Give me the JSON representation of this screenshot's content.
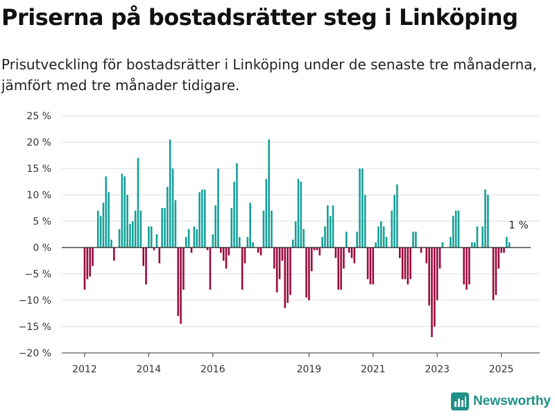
{
  "header": {
    "title": "Priserna på bostadsrätter steg i Linköping",
    "subtitle": "Prisutveckling för bostadsrätter i Linköping under de senaste tre månaderna, jämfört med tre månader tidigare."
  },
  "brand": {
    "name": "Newsworthy",
    "icon": "newsworthy-logo-icon"
  },
  "colors": {
    "positive": "#159f98",
    "negative": "#9a0a3d",
    "grid": "#dddddd",
    "zero_line": "#222222"
  },
  "chart_data": {
    "type": "bar",
    "title": "Priserna på bostadsrätter steg i Linköping",
    "xlabel": "",
    "ylabel": "",
    "ylim": [
      -20,
      25
    ],
    "y_ticks": [
      -20,
      -15,
      -10,
      -5,
      0,
      5,
      10,
      15,
      20,
      25
    ],
    "y_tick_labels": [
      "−20 %",
      "−15 %",
      "−10 %",
      "−5 %",
      "0 %",
      "5 %",
      "10 %",
      "15 %",
      "20 %",
      "25 %"
    ],
    "x_ticks": [
      {
        "label": "2012",
        "index": 0
      },
      {
        "label": "2014",
        "index": 24
      },
      {
        "label": "2016",
        "index": 48
      },
      {
        "label": "2019",
        "index": 84
      },
      {
        "label": "2021",
        "index": 108
      },
      {
        "label": "2023",
        "index": 132
      },
      {
        "label": "2025",
        "index": 156
      }
    ],
    "grid": true,
    "legend": "none",
    "annotation": {
      "text": "1 %",
      "index": 163,
      "value": 1
    },
    "values": [
      -8,
      -6,
      -5.5,
      -3.5,
      0,
      7,
      6,
      8.5,
      13.5,
      10.5,
      1.5,
      -2.5,
      0,
      3.5,
      14,
      13.5,
      10,
      4.5,
      5,
      7,
      17,
      7,
      -3.5,
      -7,
      4,
      4,
      -0.5,
      2.5,
      -3,
      7.5,
      7.5,
      11.5,
      20.5,
      15,
      9,
      -13,
      -14.5,
      -8,
      2,
      3.5,
      -1,
      4,
      3.5,
      10.5,
      11,
      11,
      -0.5,
      -8,
      2.5,
      8,
      15,
      -1,
      -2.5,
      -4,
      -1.5,
      7.5,
      12.5,
      16,
      2,
      -8,
      -3,
      2,
      8.5,
      1,
      0,
      -1,
      -1.5,
      7,
      13,
      20.5,
      7,
      -4,
      -8.5,
      -6,
      -2.5,
      -11.5,
      -10.5,
      -9,
      1.5,
      5,
      13,
      12.5,
      3.5,
      -9.5,
      -10,
      -4.5,
      -0.5,
      -0.5,
      -1.5,
      2,
      4,
      8,
      6,
      8,
      -2,
      -8,
      -8,
      -4,
      3,
      -1,
      -2,
      -3,
      3,
      15,
      15,
      10,
      -6,
      -7,
      -7,
      1,
      4,
      5,
      4,
      2,
      0,
      7,
      10,
      12,
      -2,
      -6,
      -6,
      -7,
      -6,
      3,
      3,
      0,
      -1,
      0,
      -3,
      -11,
      -17,
      -15,
      -10,
      -4,
      1,
      0,
      0,
      2,
      6,
      7,
      7,
      0,
      -7,
      -8,
      -7,
      1,
      1,
      4,
      0,
      4,
      11,
      10,
      0,
      -10,
      -9,
      -4,
      -1,
      -1,
      2,
      1
    ]
  }
}
